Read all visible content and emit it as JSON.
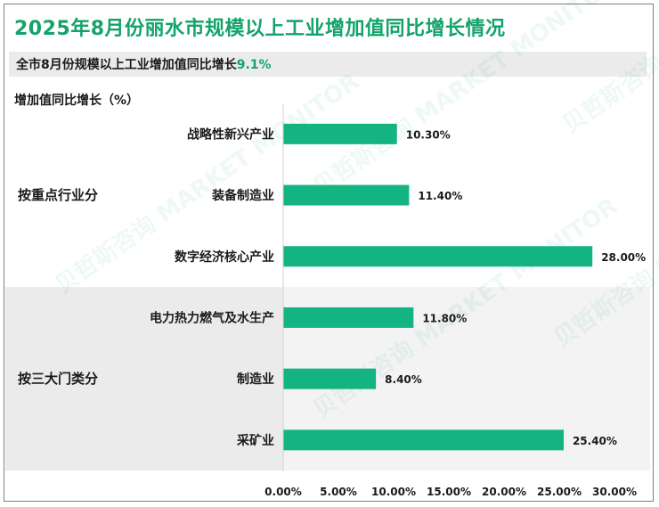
{
  "title": "2025年8月份丽水市规模以上工业增加值同比增长情况",
  "subtitle": {
    "prefix": "全市8月份规模以上工业增加值同比增长",
    "value": "9.1%"
  },
  "watermark": "贝哲斯咨询 MARKET MONITOR",
  "colors": {
    "accent": "#13a36b",
    "bar": "#13b382",
    "band": "#ebebeb"
  },
  "chart_data": {
    "type": "bar",
    "orientation": "horizontal",
    "ylabel": "增加值同比增长（%）",
    "groups": [
      {
        "name": "按重点行业分",
        "categories": [
          "战略性新兴产业",
          "装备制造业",
          "数字经济核心产业"
        ]
      },
      {
        "name": "按三大门类分",
        "categories": [
          "电力热力燃气及水生产",
          "制造业",
          "采矿业"
        ]
      }
    ],
    "categories": [
      "战略性新兴产业",
      "装备制造业",
      "数字经济核心产业",
      "电力热力燃气及水生产",
      "制造业",
      "采矿业"
    ],
    "values": [
      10.3,
      11.4,
      28.0,
      11.8,
      8.4,
      25.4
    ],
    "value_labels": [
      "10.30%",
      "11.40%",
      "28.00%",
      "11.80%",
      "8.40%",
      "25.40%"
    ],
    "xlim": [
      0,
      30
    ],
    "x_ticks": [
      "0.00%",
      "5.00%",
      "10.00%",
      "15.00%",
      "20.00%",
      "25.00%",
      "30.00%"
    ],
    "grid": false
  }
}
